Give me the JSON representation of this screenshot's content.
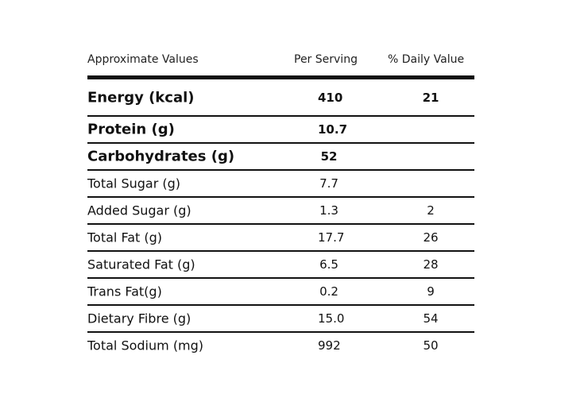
{
  "table": {
    "headers": {
      "name": "Approximate Values",
      "serving": "Per Serving",
      "daily": "% Daily Value"
    },
    "rows": [
      {
        "name": "Energy (kcal)",
        "serving": "410",
        "daily": "21"
      },
      {
        "name": "Protein (g)",
        "serving": "10.7",
        "daily": ""
      },
      {
        "name": "Carbohydrates (g)",
        "serving": "52",
        "daily": ""
      },
      {
        "name": "Total Sugar (g)",
        "serving": "7.7",
        "daily": ""
      },
      {
        "name": "Added Sugar (g)",
        "serving": "1.3",
        "daily": "2"
      },
      {
        "name": "Total Fat (g)",
        "serving": "17.7",
        "daily": "26"
      },
      {
        "name": "Saturated Fat (g)",
        "serving": "6.5",
        "daily": "28"
      },
      {
        "name": "Trans Fat(g)",
        "serving": "0.2",
        "daily": "9"
      },
      {
        "name": "Dietary Fibre (g)",
        "serving": "15.0",
        "daily": "54"
      },
      {
        "name": "Total Sodium (mg)",
        "serving": "992",
        "daily": "50"
      }
    ]
  }
}
